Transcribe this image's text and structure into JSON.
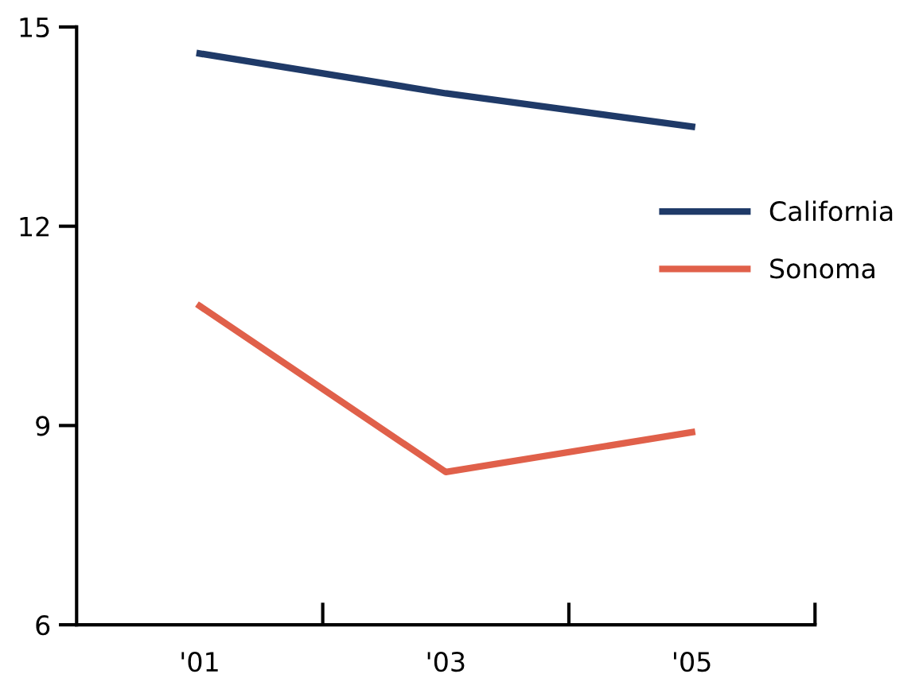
{
  "chart_data": {
    "type": "line",
    "x": [
      2001,
      2003,
      2005
    ],
    "series": [
      {
        "name": "California",
        "color": "#1f3a68",
        "values": [
          14.6,
          14.0,
          13.5
        ]
      },
      {
        "name": "Sonoma",
        "color": "#e0604a",
        "values": [
          10.8,
          8.3,
          8.9
        ]
      }
    ],
    "xlim": [
      2000,
      2006
    ],
    "xticks": [
      {
        "value": 2001,
        "label": "'01"
      },
      {
        "value": 2002,
        "label": null
      },
      {
        "value": 2003,
        "label": "'03"
      },
      {
        "value": 2004,
        "label": null
      },
      {
        "value": 2005,
        "label": "'05"
      },
      {
        "value": 2006,
        "label": null
      }
    ],
    "ylim": [
      6,
      15
    ],
    "yticks": [
      6,
      9,
      12,
      15
    ],
    "grid": false,
    "legend": "right",
    "marker": "none",
    "line_style": "solid"
  }
}
